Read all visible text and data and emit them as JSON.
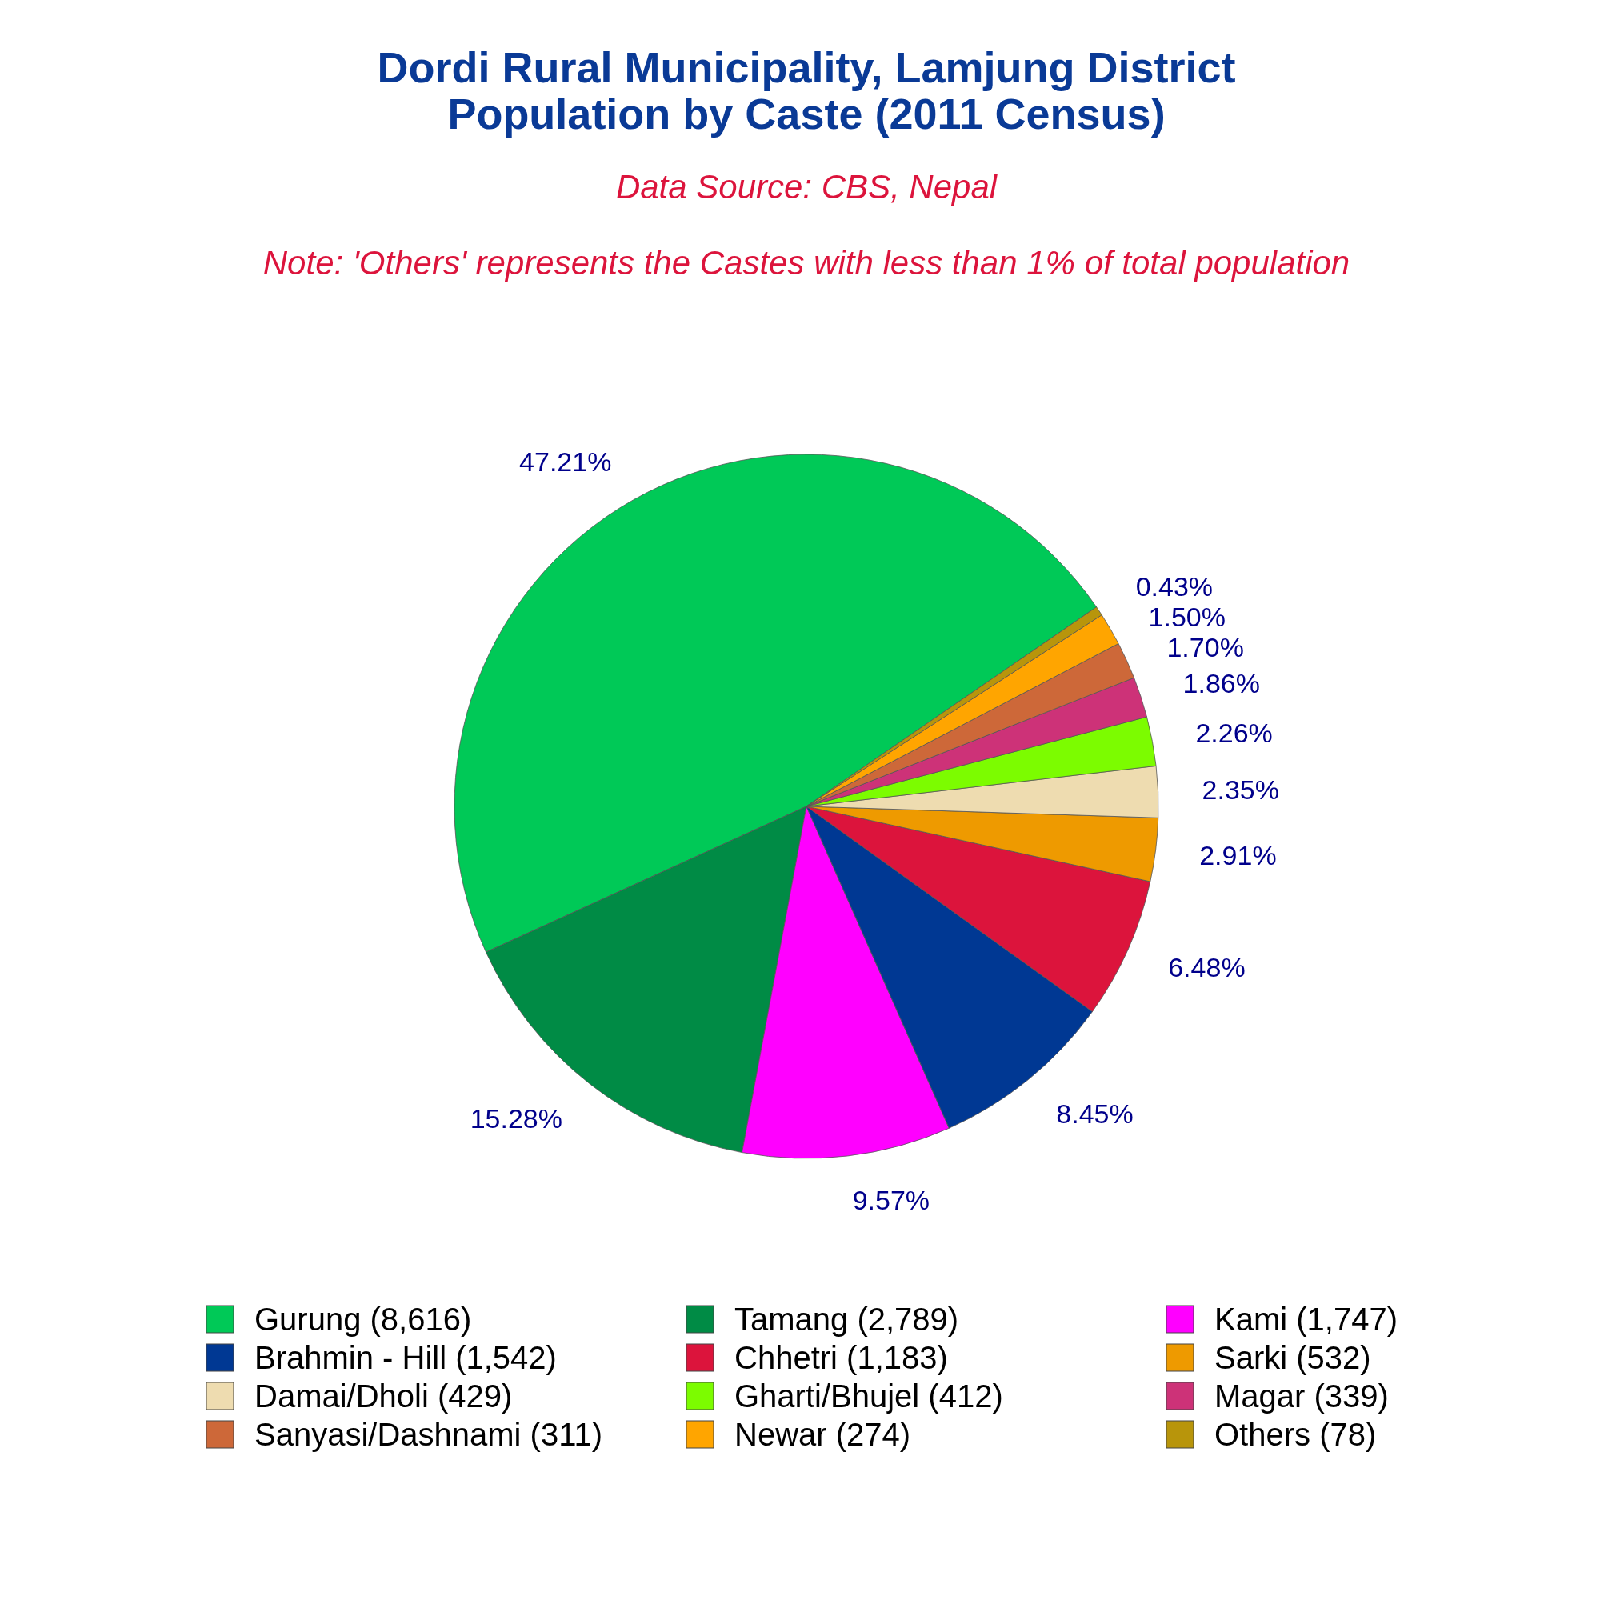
{
  "chart_data": {
    "type": "pie",
    "title": "Dordi Rural Municipality, Lamjung District\nPopulation by Caste (2011 Census)",
    "subtitle": "Data Source: CBS, Nepal",
    "annotations": [
      "Note: 'Others' represents the Castes with less than 1% of total population"
    ],
    "categories": [
      "Gurung (8,616)",
      "Tamang (2,789)",
      "Kami (1,747)",
      "Brahmin - Hill (1,542)",
      "Chhetri (1,183)",
      "Sarki (532)",
      "Damai/Dholi (429)",
      "Gharti/Bhujel (412)",
      "Magar (339)",
      "Sanyasi/Dashnami (311)",
      "Newar (274)",
      "Others (78)"
    ],
    "values": [
      47.21,
      15.28,
      9.57,
      8.45,
      6.48,
      2.91,
      2.35,
      2.26,
      1.86,
      1.7,
      1.5,
      0.43
    ],
    "value_labels": [
      "47.21%",
      "15.28%",
      "9.57%",
      "8.45%",
      "6.48%",
      "2.91%",
      "2.35%",
      "2.26%",
      "1.86%",
      "1.70%",
      "1.50%",
      "0.43%"
    ],
    "colors": [
      "#00c957",
      "#008b45",
      "#ff00ff",
      "#003893",
      "#dc143c",
      "#ee9a00",
      "#eedcb0",
      "#7cfc00",
      "#cd3278",
      "#cd6839",
      "#ffa500",
      "#b8950b"
    ],
    "legend": "bottom"
  }
}
